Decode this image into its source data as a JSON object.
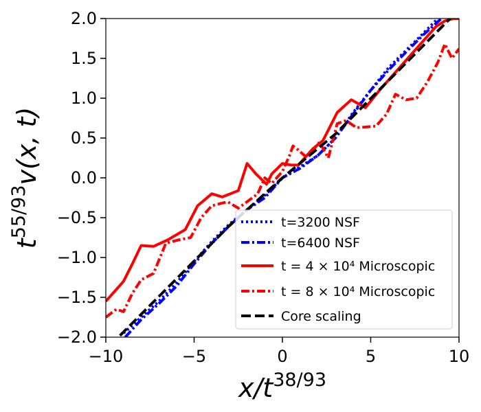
{
  "chart_data": {
    "type": "line",
    "title": "",
    "xlabel_base": "x/t",
    "xlabel_exp": "38/93",
    "ylabel_base": "t",
    "ylabel_exp": "55/93",
    "ylabel_func": "v(x, t)",
    "xlim": [
      -10,
      10
    ],
    "ylim": [
      -2.0,
      2.0
    ],
    "xticks": [
      -10,
      -5,
      0,
      5,
      10
    ],
    "yticks": [
      -2.0,
      -1.5,
      -1.0,
      -0.5,
      0.0,
      0.5,
      1.0,
      1.5,
      2.0
    ],
    "xtick_labels": [
      "−10",
      "−5",
      "0",
      "5",
      "10"
    ],
    "ytick_labels": [
      "−2.0",
      "−1.5",
      "−1.0",
      "−0.5",
      "0.0",
      "0.5",
      "1.0",
      "1.5",
      "2.0"
    ],
    "grid": false,
    "legend_position": "lower-right",
    "series": [
      {
        "name": "t=3200 NSF",
        "legend_label": "t=3200 NSF",
        "color": "#0000ff",
        "style": "dotted",
        "x": [
          -9.0,
          -8.0,
          -7.0,
          -6.0,
          -5.0,
          -4.0,
          -3.0,
          -2.0,
          -1.0,
          0.0,
          1.0,
          2.0,
          3.0,
          4.0,
          5.0,
          6.0,
          7.0,
          8.0,
          8.8
        ],
        "y": [
          -1.95,
          -1.75,
          -1.55,
          -1.32,
          -1.05,
          -0.8,
          -0.58,
          -0.4,
          -0.22,
          0.0,
          0.14,
          0.28,
          0.5,
          0.82,
          1.1,
          1.38,
          1.6,
          1.82,
          2.0
        ]
      },
      {
        "name": "t=6400 NSF",
        "legend_label": "t=6400 NSF",
        "color": "#0000ff",
        "style": "dashdot",
        "x": [
          -8.9,
          -8.0,
          -7.0,
          -6.0,
          -5.0,
          -4.0,
          -3.0,
          -2.0,
          -1.0,
          0.0,
          1.0,
          2.0,
          3.0,
          4.0,
          5.0,
          6.0,
          7.0,
          8.0,
          9.0
        ],
        "y": [
          -2.0,
          -1.78,
          -1.58,
          -1.36,
          -1.08,
          -0.82,
          -0.6,
          -0.4,
          -0.25,
          0.0,
          0.12,
          0.28,
          0.5,
          0.8,
          1.1,
          1.35,
          1.58,
          1.8,
          2.0
        ]
      },
      {
        "name": "t=4x10^4 Microscopic",
        "legend_label": "t = 4 × 10⁴ Microscopic",
        "color": "#ff0000",
        "style": "solid",
        "x": [
          -10.0,
          -9.0,
          -8.5,
          -8.0,
          -7.3,
          -6.5,
          -5.5,
          -4.8,
          -4.0,
          -3.4,
          -2.5,
          -2.0,
          -1.5,
          -0.9,
          -0.6,
          0.0,
          0.5,
          0.9,
          1.7,
          2.3,
          3.1,
          3.9,
          4.7,
          5.5,
          6.3,
          7.1,
          7.9,
          8.7,
          9.2,
          9.7,
          10.0
        ],
        "y": [
          -1.55,
          -1.3,
          -1.08,
          -0.85,
          -0.86,
          -0.78,
          -0.65,
          -0.35,
          -0.2,
          -0.24,
          -0.16,
          0.18,
          0.05,
          -0.08,
          0.05,
          0.18,
          0.16,
          0.16,
          0.36,
          0.47,
          0.82,
          0.98,
          0.88,
          1.1,
          1.3,
          1.5,
          1.7,
          1.9,
          1.97,
          2.0,
          2.0
        ]
      },
      {
        "name": "t=8x10^4 Microscopic",
        "legend_label": "t = 8 × 10⁴ Microscopic",
        "color": "#ff0000",
        "style": "dashdot",
        "x": [
          -10.0,
          -9.4,
          -9.0,
          -8.5,
          -8.0,
          -7.3,
          -6.6,
          -5.9,
          -5.2,
          -4.6,
          -4.0,
          -3.1,
          -2.5,
          -2.0,
          -1.4,
          -1.0,
          -0.6,
          0.0,
          0.4,
          0.6,
          0.9,
          1.4,
          2.1,
          2.6,
          3.1,
          3.6,
          4.2,
          4.8,
          5.3,
          5.9,
          6.4,
          7.0,
          7.6,
          8.2,
          8.8,
          9.2,
          9.6,
          10.0
        ],
        "y": [
          -1.75,
          -1.65,
          -1.68,
          -1.45,
          -1.28,
          -1.2,
          -0.82,
          -0.78,
          -0.75,
          -0.5,
          -0.35,
          -0.3,
          -0.38,
          -0.3,
          -0.2,
          0.0,
          -0.07,
          0.08,
          0.28,
          0.4,
          0.35,
          0.25,
          0.45,
          0.25,
          0.68,
          0.72,
          0.63,
          0.64,
          0.65,
          0.8,
          1.05,
          0.98,
          1.0,
          1.2,
          1.45,
          1.68,
          1.5,
          1.62
        ]
      },
      {
        "name": "Core scaling",
        "legend_label": "Core scaling",
        "color": "#000000",
        "style": "dashed",
        "x": [
          -9.2,
          -3.0,
          0.0,
          3.0,
          9.5
        ],
        "y": [
          -1.98,
          -0.6,
          0.0,
          0.55,
          2.0
        ]
      }
    ]
  }
}
